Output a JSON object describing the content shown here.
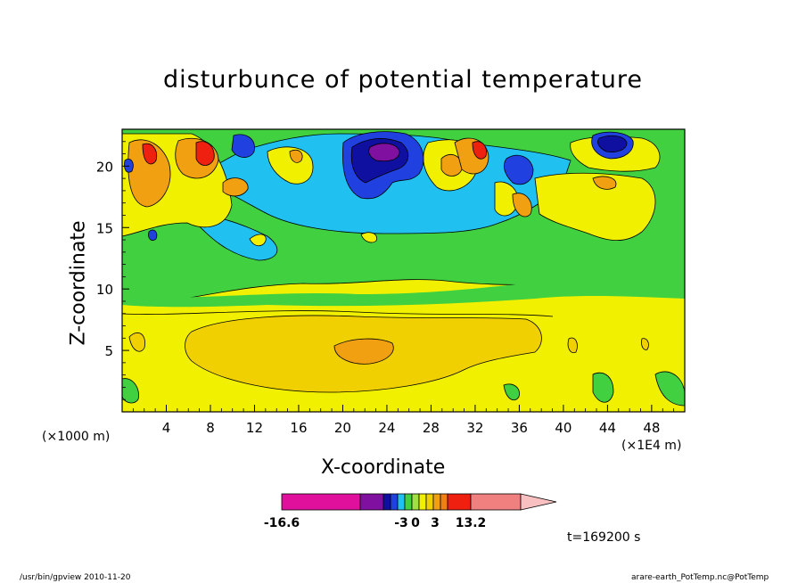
{
  "chart_data": {
    "type": "heatmap",
    "title": "disturbunce of potential temperature",
    "xlabel": "X-coordinate",
    "ylabel": "Z-coordinate",
    "x_unit_left": "(×1000 m)",
    "x_unit_right": "(×1E4 m)",
    "x_ticks": [
      4,
      8,
      12,
      16,
      20,
      24,
      28,
      32,
      36,
      40,
      44,
      48
    ],
    "y_ticks": [
      5,
      10,
      15,
      20
    ],
    "xlim": [
      0,
      51
    ],
    "ylim": [
      0,
      23
    ],
    "colorbar": {
      "min_label": "-16.6",
      "labels": [
        "-3",
        "0",
        "3"
      ],
      "max_label": "13.2",
      "colors": [
        "#e0109c",
        "#8010a0",
        "#1010a0",
        "#2040e0",
        "#20c0f0",
        "#40d040",
        "#a0e040",
        "#f0f000",
        "#f0d000",
        "#f0a010",
        "#f08010",
        "#f02010",
        "#f08080",
        "#f8c0c0"
      ]
    },
    "time_label": "t=169200 s",
    "footer_left": "/usr/bin/gpview   2010-11-20",
    "footer_right": "arare-earth_PotTemp.nc@PotTemp"
  }
}
